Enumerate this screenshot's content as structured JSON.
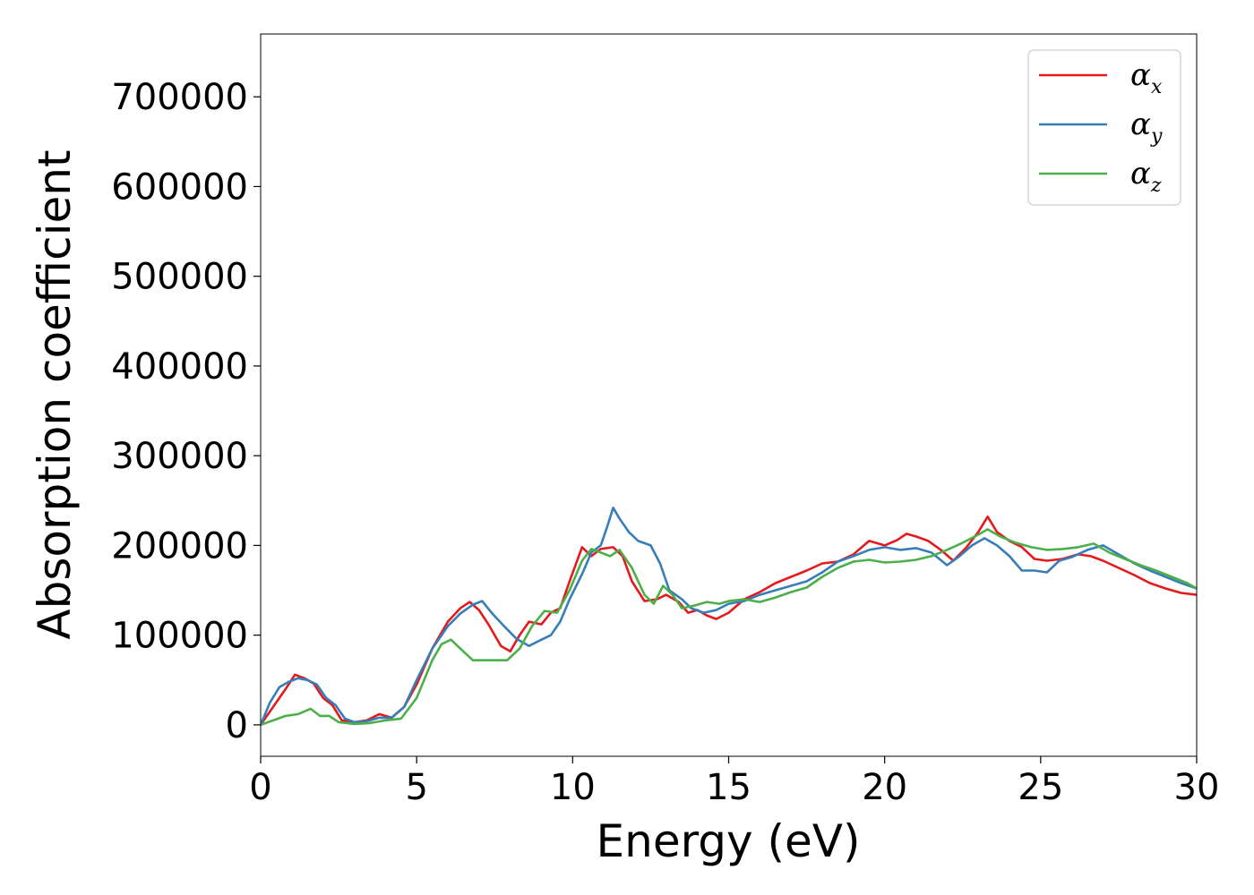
{
  "chart_data": {
    "type": "line",
    "title": "",
    "xlabel": "Energy (eV)",
    "ylabel": "Absorption coefficient",
    "xlim": [
      0,
      30
    ],
    "ylim": [
      -35000,
      770000
    ],
    "xticks": [
      0,
      5,
      10,
      15,
      20,
      25,
      30
    ],
    "yticks": [
      0,
      100000,
      200000,
      300000,
      400000,
      500000,
      600000,
      700000
    ],
    "grid": false,
    "legend_position": "top-right",
    "series": [
      {
        "name": "α",
        "subscript": "x",
        "color": "#e41a1c",
        "points": [
          [
            0,
            0
          ],
          [
            0.4,
            20000
          ],
          [
            0.8,
            40000
          ],
          [
            1.1,
            56000
          ],
          [
            1.4,
            52000
          ],
          [
            1.7,
            46000
          ],
          [
            2.0,
            30000
          ],
          [
            2.3,
            22000
          ],
          [
            2.6,
            5000
          ],
          [
            3.0,
            3000
          ],
          [
            3.4,
            5000
          ],
          [
            3.8,
            12000
          ],
          [
            4.2,
            8000
          ],
          [
            4.6,
            20000
          ],
          [
            5.0,
            45000
          ],
          [
            5.5,
            85000
          ],
          [
            6.0,
            115000
          ],
          [
            6.4,
            130000
          ],
          [
            6.7,
            137000
          ],
          [
            7.0,
            128000
          ],
          [
            7.3,
            112000
          ],
          [
            7.7,
            88000
          ],
          [
            8.0,
            82000
          ],
          [
            8.3,
            100000
          ],
          [
            8.6,
            115000
          ],
          [
            9.0,
            112000
          ],
          [
            9.3,
            125000
          ],
          [
            9.6,
            130000
          ],
          [
            9.9,
            160000
          ],
          [
            10.3,
            198000
          ],
          [
            10.6,
            188000
          ],
          [
            10.9,
            196000
          ],
          [
            11.3,
            198000
          ],
          [
            11.6,
            188000
          ],
          [
            11.9,
            160000
          ],
          [
            12.3,
            138000
          ],
          [
            12.7,
            140000
          ],
          [
            13.0,
            145000
          ],
          [
            13.4,
            137000
          ],
          [
            13.7,
            125000
          ],
          [
            14.0,
            128000
          ],
          [
            14.3,
            122000
          ],
          [
            14.6,
            118000
          ],
          [
            15.0,
            125000
          ],
          [
            15.5,
            140000
          ],
          [
            16.0,
            148000
          ],
          [
            16.5,
            158000
          ],
          [
            17.0,
            165000
          ],
          [
            17.5,
            172000
          ],
          [
            18.0,
            180000
          ],
          [
            18.5,
            182000
          ],
          [
            19.0,
            190000
          ],
          [
            19.5,
            205000
          ],
          [
            20.0,
            200000
          ],
          [
            20.4,
            206000
          ],
          [
            20.7,
            213000
          ],
          [
            21.0,
            210000
          ],
          [
            21.4,
            205000
          ],
          [
            21.8,
            195000
          ],
          [
            22.2,
            183000
          ],
          [
            22.6,
            197000
          ],
          [
            23.0,
            215000
          ],
          [
            23.3,
            232000
          ],
          [
            23.6,
            215000
          ],
          [
            24.0,
            205000
          ],
          [
            24.4,
            198000
          ],
          [
            24.8,
            185000
          ],
          [
            25.2,
            183000
          ],
          [
            25.7,
            185000
          ],
          [
            26.2,
            190000
          ],
          [
            26.6,
            188000
          ],
          [
            27.0,
            183000
          ],
          [
            27.5,
            175000
          ],
          [
            28.0,
            167000
          ],
          [
            28.5,
            158000
          ],
          [
            29.0,
            152000
          ],
          [
            29.5,
            147000
          ],
          [
            30,
            145000
          ]
        ]
      },
      {
        "name": "α",
        "subscript": "y",
        "color": "#377eb8",
        "points": [
          [
            0,
            0
          ],
          [
            0.3,
            25000
          ],
          [
            0.6,
            42000
          ],
          [
            0.9,
            48000
          ],
          [
            1.2,
            52000
          ],
          [
            1.5,
            50000
          ],
          [
            1.8,
            45000
          ],
          [
            2.1,
            30000
          ],
          [
            2.4,
            22000
          ],
          [
            2.7,
            7000
          ],
          [
            3.0,
            3000
          ],
          [
            3.4,
            4000
          ],
          [
            3.8,
            8000
          ],
          [
            4.2,
            8000
          ],
          [
            4.6,
            20000
          ],
          [
            5.0,
            50000
          ],
          [
            5.5,
            85000
          ],
          [
            6.0,
            110000
          ],
          [
            6.4,
            124000
          ],
          [
            6.8,
            134000
          ],
          [
            7.1,
            138000
          ],
          [
            7.4,
            125000
          ],
          [
            7.8,
            110000
          ],
          [
            8.2,
            96000
          ],
          [
            8.6,
            88000
          ],
          [
            9.0,
            95000
          ],
          [
            9.3,
            100000
          ],
          [
            9.6,
            115000
          ],
          [
            9.9,
            140000
          ],
          [
            10.3,
            168000
          ],
          [
            10.6,
            192000
          ],
          [
            10.9,
            200000
          ],
          [
            11.1,
            220000
          ],
          [
            11.3,
            242000
          ],
          [
            11.5,
            230000
          ],
          [
            11.8,
            215000
          ],
          [
            12.1,
            205000
          ],
          [
            12.5,
            200000
          ],
          [
            12.8,
            180000
          ],
          [
            13.1,
            150000
          ],
          [
            13.5,
            140000
          ],
          [
            13.8,
            130000
          ],
          [
            14.2,
            125000
          ],
          [
            14.6,
            128000
          ],
          [
            15.0,
            135000
          ],
          [
            15.5,
            138000
          ],
          [
            16.0,
            145000
          ],
          [
            16.5,
            150000
          ],
          [
            17.0,
            155000
          ],
          [
            17.5,
            160000
          ],
          [
            18.0,
            170000
          ],
          [
            18.5,
            182000
          ],
          [
            19.0,
            188000
          ],
          [
            19.5,
            195000
          ],
          [
            20.0,
            198000
          ],
          [
            20.5,
            195000
          ],
          [
            21.0,
            197000
          ],
          [
            21.5,
            192000
          ],
          [
            22.0,
            178000
          ],
          [
            22.4,
            188000
          ],
          [
            22.8,
            200000
          ],
          [
            23.2,
            208000
          ],
          [
            23.6,
            200000
          ],
          [
            24.0,
            188000
          ],
          [
            24.4,
            172000
          ],
          [
            24.8,
            172000
          ],
          [
            25.2,
            170000
          ],
          [
            25.6,
            183000
          ],
          [
            26.0,
            187000
          ],
          [
            26.5,
            195000
          ],
          [
            27.0,
            200000
          ],
          [
            27.5,
            190000
          ],
          [
            28.0,
            180000
          ],
          [
            28.5,
            172000
          ],
          [
            29.0,
            165000
          ],
          [
            29.5,
            158000
          ],
          [
            30,
            152000
          ]
        ]
      },
      {
        "name": "α",
        "subscript": "z",
        "color": "#4daf4a",
        "points": [
          [
            0,
            0
          ],
          [
            0.4,
            5000
          ],
          [
            0.8,
            10000
          ],
          [
            1.2,
            12000
          ],
          [
            1.6,
            18000
          ],
          [
            1.9,
            10000
          ],
          [
            2.2,
            10000
          ],
          [
            2.5,
            3000
          ],
          [
            3.0,
            1000
          ],
          [
            3.5,
            2000
          ],
          [
            4.0,
            5000
          ],
          [
            4.5,
            7000
          ],
          [
            5.0,
            30000
          ],
          [
            5.5,
            72000
          ],
          [
            5.8,
            90000
          ],
          [
            6.1,
            95000
          ],
          [
            6.4,
            85000
          ],
          [
            6.8,
            72000
          ],
          [
            7.2,
            72000
          ],
          [
            7.5,
            72000
          ],
          [
            7.9,
            72000
          ],
          [
            8.3,
            85000
          ],
          [
            8.7,
            110000
          ],
          [
            9.1,
            127000
          ],
          [
            9.5,
            125000
          ],
          [
            9.9,
            150000
          ],
          [
            10.3,
            183000
          ],
          [
            10.6,
            196000
          ],
          [
            10.9,
            192000
          ],
          [
            11.2,
            188000
          ],
          [
            11.5,
            195000
          ],
          [
            11.9,
            175000
          ],
          [
            12.3,
            145000
          ],
          [
            12.6,
            135000
          ],
          [
            12.9,
            155000
          ],
          [
            13.2,
            145000
          ],
          [
            13.5,
            130000
          ],
          [
            13.9,
            133000
          ],
          [
            14.3,
            137000
          ],
          [
            14.7,
            135000
          ],
          [
            15.0,
            138000
          ],
          [
            15.5,
            140000
          ],
          [
            16.0,
            137000
          ],
          [
            16.5,
            142000
          ],
          [
            17.0,
            148000
          ],
          [
            17.5,
            153000
          ],
          [
            18.0,
            165000
          ],
          [
            18.5,
            175000
          ],
          [
            19.0,
            182000
          ],
          [
            19.5,
            184000
          ],
          [
            20.0,
            181000
          ],
          [
            20.5,
            182000
          ],
          [
            21.0,
            184000
          ],
          [
            21.5,
            188000
          ],
          [
            22.0,
            195000
          ],
          [
            22.5,
            203000
          ],
          [
            23.0,
            212000
          ],
          [
            23.3,
            218000
          ],
          [
            23.7,
            210000
          ],
          [
            24.2,
            203000
          ],
          [
            24.7,
            198000
          ],
          [
            25.2,
            195000
          ],
          [
            25.7,
            196000
          ],
          [
            26.2,
            198000
          ],
          [
            26.7,
            202000
          ],
          [
            27.2,
            192000
          ],
          [
            27.7,
            185000
          ],
          [
            28.2,
            178000
          ],
          [
            28.7,
            172000
          ],
          [
            29.2,
            165000
          ],
          [
            29.7,
            158000
          ],
          [
            30,
            152000
          ]
        ]
      }
    ]
  }
}
